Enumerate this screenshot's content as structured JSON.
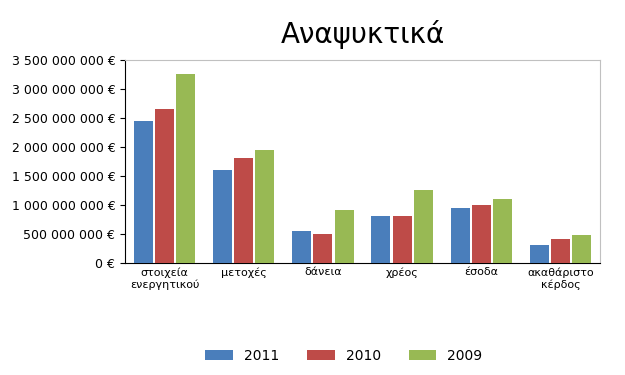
{
  "chart_data": {
    "type": "bar",
    "title": "Αναψυκτικά",
    "categories": [
      "στοιχεία ενεργητικού",
      "μετοχές",
      "δάνεια",
      "χρέος",
      "έσοδα",
      "ακαθάριστο κέρδος"
    ],
    "series": [
      {
        "name": "2011",
        "color": "#4a7ebb",
        "values": [
          2450000000,
          1600000000,
          550000000,
          800000000,
          950000000,
          300000000
        ]
      },
      {
        "name": "2010",
        "color": "#be4b48",
        "values": [
          2650000000,
          1800000000,
          500000000,
          800000000,
          1000000000,
          400000000
        ]
      },
      {
        "name": "2009",
        "color": "#98b954",
        "values": [
          3250000000,
          1950000000,
          900000000,
          1250000000,
          1100000000,
          480000000
        ]
      }
    ],
    "ylim": [
      0,
      3500000000
    ],
    "yticks": [
      {
        "value": 0,
        "label": "0 €"
      },
      {
        "value": 500000000,
        "label": "500 000 000 €"
      },
      {
        "value": 1000000000,
        "label": "1 000 000 000 €"
      },
      {
        "value": 1500000000,
        "label": "1 500 000 000 €"
      },
      {
        "value": 2000000000,
        "label": "2 000 000 000 €"
      },
      {
        "value": 2500000000,
        "label": "2 500 000 000 €"
      },
      {
        "value": 3000000000,
        "label": "3 000 000 000 €"
      },
      {
        "value": 3500000000,
        "label": "3 500 000 000 €"
      }
    ],
    "grid": false,
    "legend": "lower center"
  }
}
